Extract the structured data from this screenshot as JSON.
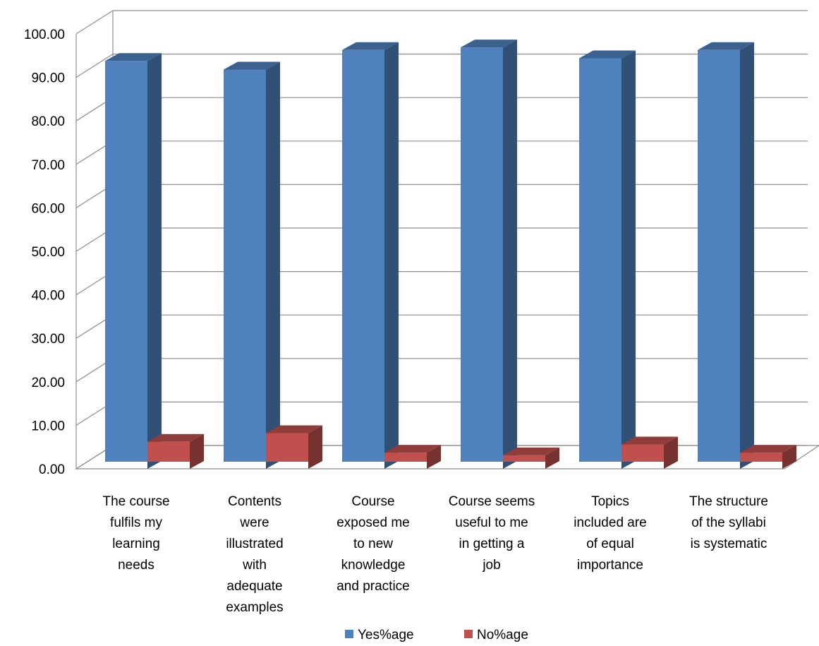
{
  "chart_data": {
    "type": "bar",
    "categories": [
      "The course fulfils my learning needs",
      "Contents were illustrated with adequate examples",
      "Course exposed me to new knowledge and practice",
      "Course seems useful to me in getting a job",
      "Topics included are of equal importance",
      "The structure of the syllabi is systematic"
    ],
    "category_lines": [
      [
        "The course",
        "fulfils my",
        "learning",
        "needs"
      ],
      [
        "Contents",
        "were",
        "illustrated",
        "with",
        "adequate",
        "examples"
      ],
      [
        "Course",
        "exposed me",
        "to new",
        "knowledge",
        "and practice"
      ],
      [
        "Course seems",
        "useful to me",
        "in getting a",
        "job"
      ],
      [
        "Topics",
        "included are",
        "of equal",
        "importance"
      ],
      [
        "The structure",
        "of the syllabi",
        "is systematic"
      ]
    ],
    "series": [
      {
        "name": "Yes%age",
        "values": [
          93.8,
          91.8,
          96.3,
          96.9,
          94.4,
          96.3
        ],
        "color": "#4F81BD"
      },
      {
        "name": "No%age",
        "values": [
          6.2,
          8.2,
          3.7,
          3.1,
          5.6,
          3.7
        ],
        "color": "#C0504D"
      }
    ],
    "ylim": [
      0,
      100
    ],
    "yticks": [
      "0.00",
      "10.00",
      "20.00",
      "30.00",
      "40.00",
      "50.00",
      "60.00",
      "70.00",
      "80.00",
      "90.00",
      "100.00"
    ],
    "grid": true,
    "legend": "bottom",
    "three_d": true
  }
}
